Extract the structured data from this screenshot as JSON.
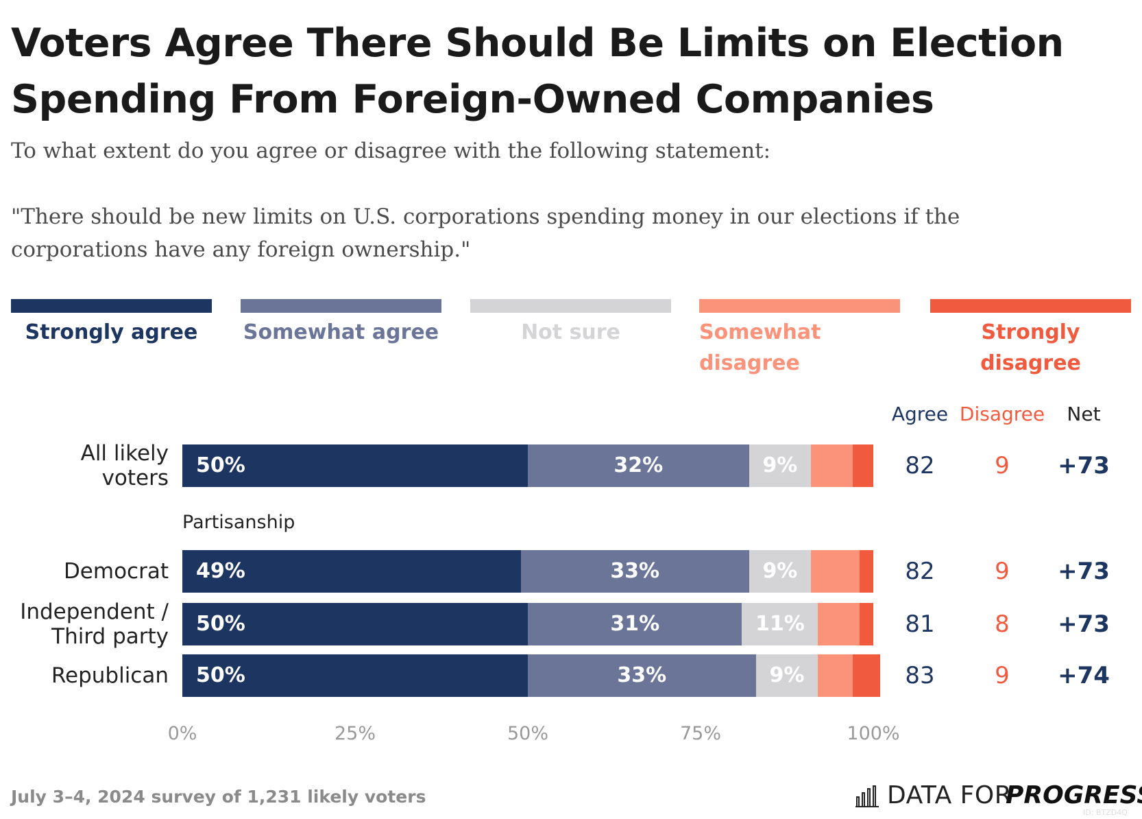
{
  "chart_data": {
    "type": "stacked_bar_horizontal",
    "title": "Voters Agree There Should Be Limits on Election Spending From Foreign-Owned Companies",
    "subtitle": "To what extent do you agree or disagree with the following statement:",
    "statement": "\"There should be new limits on U.S. corporations spending money in our elections if the corporations have any foreign ownership.\"",
    "categories": [
      "All likely\nvoters",
      "Democrat",
      "Independent /\nThird party",
      "Republican"
    ],
    "group_label": "Partisanship",
    "series": [
      {
        "name": "Strongly agree",
        "color": "#1d3561",
        "values": [
          50,
          49,
          50,
          50
        ],
        "value_labels": [
          "50%",
          "49%",
          "50%",
          "50%"
        ]
      },
      {
        "name": "Somewhat agree",
        "color": "#6b7597",
        "values": [
          32,
          33,
          31,
          33
        ],
        "value_labels": [
          "32%",
          "33%",
          "31%",
          "33%"
        ]
      },
      {
        "name": "Not sure",
        "color": "#d4d4d6",
        "values": [
          9,
          9,
          11,
          9
        ],
        "value_labels": [
          "9%",
          "9%",
          "11%",
          "9%"
        ]
      },
      {
        "name": "Somewhat\ndisagree",
        "color": "#fb937a",
        "values": [
          6,
          7,
          6,
          5
        ]
      },
      {
        "name": "Strongly disagree",
        "color": "#f05a3f",
        "values": [
          3,
          2,
          2,
          4
        ]
      }
    ],
    "columns": [
      {
        "name": "Agree",
        "color": "#1d3561",
        "values": [
          82,
          82,
          81,
          83
        ]
      },
      {
        "name": "Disagree",
        "color": "#f05a3f",
        "values": [
          9,
          9,
          8,
          9
        ]
      },
      {
        "name": "Net",
        "color": "#1d3561",
        "header_color": "#222222",
        "values": [
          73,
          73,
          73,
          74
        ],
        "value_labels": [
          "+73",
          "+73",
          "+73",
          "+74"
        ]
      }
    ],
    "xlim": [
      0,
      100
    ],
    "xticks": [
      {
        "value": 0,
        "label": "0%"
      },
      {
        "value": 25,
        "label": "25%"
      },
      {
        "value": 50,
        "label": "50%"
      },
      {
        "value": 75,
        "label": "75%"
      },
      {
        "value": 100,
        "label": "100%"
      }
    ],
    "source": "July 3–4, 2024 survey of 1,231 likely voters",
    "brand": [
      "DATA FOR",
      "PROGRESS"
    ],
    "id_tag": "ID: BTZD4Q"
  }
}
